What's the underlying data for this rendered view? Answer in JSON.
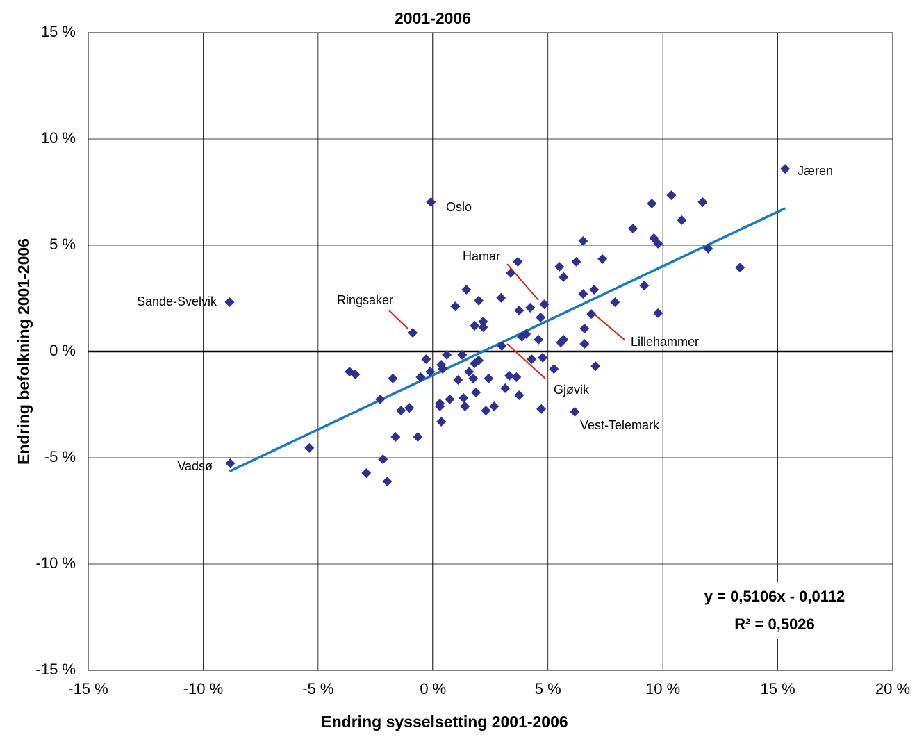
{
  "chart_data": {
    "type": "scatter",
    "title": "2001-2006",
    "x_label": "Endring sysselsetting 2001-2006",
    "y_label": "Endring befolkning 2001-2006",
    "xlim": [
      -15,
      20
    ],
    "ylim": [
      -15,
      15
    ],
    "xticks": [
      {
        "value": -15,
        "label": "-15 %"
      },
      {
        "value": -10,
        "label": "-10 %"
      },
      {
        "value": -5,
        "label": "-5 %"
      },
      {
        "value": 0,
        "label": "0 %"
      },
      {
        "value": 5,
        "label": "5 %"
      },
      {
        "value": 10,
        "label": "10 %"
      },
      {
        "value": 15,
        "label": "15 %"
      },
      {
        "value": 20,
        "label": "20 %"
      }
    ],
    "yticks": [
      {
        "value": -15,
        "label": "-15 %"
      },
      {
        "value": -10,
        "label": "-10 %"
      },
      {
        "value": -5,
        "label": "-5 %"
      },
      {
        "value": 0,
        "label": "0 %"
      },
      {
        "value": 5,
        "label": "5 %"
      },
      {
        "value": 10,
        "label": "10 %"
      },
      {
        "value": 15,
        "label": "15 %"
      }
    ],
    "grid": true,
    "trendline": true,
    "annotations": [
      "y = 0,5106x - 0,0112",
      "R² = 0,5026"
    ],
    "x": [
      15.32,
      -0.09,
      -8.85,
      -8.82,
      -0.88,
      4.84,
      6.89,
      2.99,
      6.17,
      10.37,
      9.52,
      11.73,
      10.82,
      8.7,
      9.61,
      9.79,
      6.53,
      11.97,
      13.36,
      7.37,
      6.23,
      3.69,
      5.5,
      3.38,
      5.68,
      9.19,
      7.01,
      6.53,
      1.45,
      2.96,
      7.92,
      1.99,
      0.97,
      4.23,
      3.75,
      9.79,
      2.18,
      1.81,
      2.18,
      6.59,
      4.05,
      3.87,
      5.68,
      5.56,
      6.59,
      4.59,
      4.68,
      0.6,
      -0.3,
      1.27,
      4.29,
      4.77,
      1.99,
      1.81,
      0.36,
      0.42,
      1.57,
      -0.12,
      5.26,
      7.07,
      -0.54,
      -3.63,
      -3.38,
      1.09,
      1.75,
      2.42,
      3.32,
      3.63,
      -1.75,
      3.14,
      3.75,
      1.87,
      0.73,
      1.33,
      -2.3,
      0.3,
      0.3,
      1.39,
      2.66,
      2.3,
      -1.03,
      -1.39,
      4.71,
      0.36,
      -1.63,
      -0.66,
      -5.38,
      -2.18,
      -2.9,
      -1.99
    ],
    "series": [
      {
        "color": "#2e3192",
        "values": [
          8.59,
          7.03,
          2.32,
          -5.26,
          0.88,
          2.22,
          1.76,
          0.26,
          -2.84,
          7.35,
          6.96,
          7.03,
          6.18,
          5.78,
          5.33,
          5.07,
          5.2,
          4.84,
          3.95,
          4.35,
          4.22,
          4.22,
          3.99,
          3.69,
          3.5,
          3.1,
          2.91,
          2.71,
          2.91,
          2.52,
          2.32,
          2.39,
          2.12,
          2.06,
          1.93,
          1.8,
          1.41,
          1.21,
          1.14,
          1.08,
          0.82,
          0.69,
          0.56,
          0.42,
          0.36,
          0.56,
          1.6,
          -0.16,
          -0.36,
          -0.16,
          -0.36,
          -0.29,
          -0.42,
          -0.56,
          -0.62,
          -0.82,
          -0.95,
          -0.95,
          -0.82,
          -0.69,
          -1.21,
          -0.95,
          -1.08,
          -1.34,
          -1.27,
          -1.27,
          -1.14,
          -1.21,
          -1.27,
          -1.73,
          -2.06,
          -1.93,
          -2.25,
          -2.19,
          -2.25,
          -2.45,
          -2.58,
          -2.58,
          -2.58,
          -2.78,
          -2.65,
          -2.78,
          -2.71,
          -3.3,
          -4.02,
          -4.02,
          -4.54,
          -5.07,
          -5.72,
          -6.11
        ],
        "labels": [
          "Jæren",
          "Oslo",
          "Sande-Svelvik",
          "Vadsø",
          "Ringsaker",
          "Hamar",
          "Lillehammer",
          "Gjøvik",
          "Vest-Telemark",
          null,
          null,
          null,
          null,
          null,
          null,
          null,
          null,
          null,
          null,
          null,
          null,
          null,
          null,
          null,
          null,
          null,
          null,
          null,
          null,
          null,
          null,
          null,
          null,
          null,
          null,
          null,
          null,
          null,
          null,
          null,
          null,
          null,
          null,
          null,
          null,
          null,
          null,
          null,
          null,
          null,
          null,
          null,
          null,
          null,
          null,
          null,
          null,
          null,
          null,
          null,
          null,
          null,
          null,
          null,
          null,
          null,
          null,
          null,
          null,
          null,
          null,
          null,
          null,
          null,
          null,
          null,
          null,
          null,
          null,
          null,
          null,
          null,
          null,
          null,
          null,
          null,
          null,
          null,
          null,
          null
        ]
      }
    ]
  }
}
